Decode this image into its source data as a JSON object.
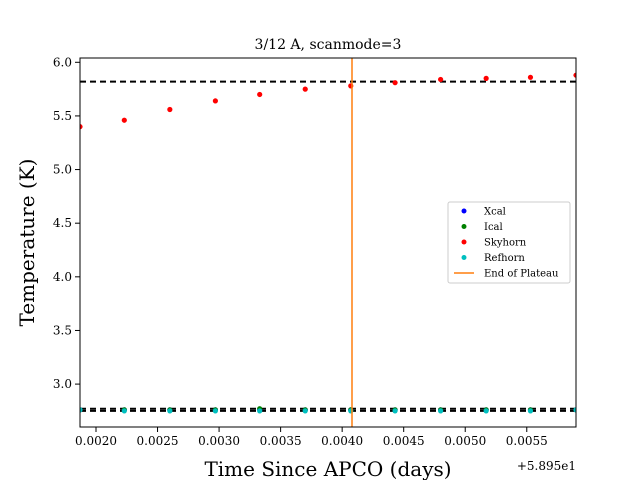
{
  "chart_data": {
    "type": "scatter",
    "title": "3/12 A, scanmode=3",
    "xlabel": "Time Since APCO (days)",
    "ylabel": "Temperature (K)",
    "x_offset_label": "+5.895e1",
    "xlim": [
      0.00187,
      0.0059
    ],
    "ylim": [
      2.6,
      6.04
    ],
    "xticks": [
      0.002,
      0.0025,
      0.003,
      0.0035,
      0.004,
      0.0045,
      0.005,
      0.0055
    ],
    "xtick_labels": [
      "0.0020",
      "0.0025",
      "0.0030",
      "0.0035",
      "0.0040",
      "0.0045",
      "0.0050",
      "0.0055"
    ],
    "yticks": [
      3.0,
      3.5,
      4.0,
      4.5,
      5.0,
      5.5,
      6.0
    ],
    "ytick_labels": [
      "3.0",
      "3.5",
      "4.0",
      "4.5",
      "5.0",
      "5.5",
      "6.0"
    ],
    "grid": false,
    "legend_position": "center-right",
    "series": [
      {
        "name": "Xcal",
        "color": "#0000ff",
        "x": [
          0.00187,
          0.00223,
          0.0026,
          0.00297,
          0.00333,
          0.0037,
          0.00407,
          0.00443,
          0.0048,
          0.00517,
          0.00553,
          0.0059
        ],
        "y": [
          2.76,
          2.76,
          2.76,
          2.76,
          2.76,
          2.76,
          2.76,
          2.76,
          2.76,
          2.76,
          2.76,
          2.76
        ]
      },
      {
        "name": "Ical",
        "color": "#008000",
        "x": [
          0.00187,
          0.00223,
          0.0026,
          0.00297,
          0.00333,
          0.0037,
          0.00407,
          0.00443,
          0.0048,
          0.00517,
          0.00553,
          0.0059
        ],
        "y": [
          2.76,
          2.76,
          2.76,
          2.76,
          2.77,
          2.76,
          2.76,
          2.76,
          2.76,
          2.76,
          2.76,
          2.76
        ]
      },
      {
        "name": "Skyhorn",
        "color": "#ff0000",
        "x": [
          0.00187,
          0.00223,
          0.0026,
          0.00297,
          0.00333,
          0.0037,
          0.00407,
          0.00443,
          0.0048,
          0.00517,
          0.00553,
          0.0059
        ],
        "y": [
          5.4,
          5.46,
          5.56,
          5.64,
          5.7,
          5.75,
          5.78,
          5.81,
          5.84,
          5.85,
          5.86,
          5.88
        ]
      },
      {
        "name": "Refhorn",
        "color": "#00bfbf",
        "x": [
          0.00187,
          0.00223,
          0.0026,
          0.00297,
          0.00333,
          0.0037,
          0.00407,
          0.00443,
          0.0048,
          0.00517,
          0.00553,
          0.0059
        ],
        "y": [
          2.76,
          2.75,
          2.75,
          2.75,
          2.75,
          2.75,
          2.75,
          2.75,
          2.75,
          2.75,
          2.75,
          2.76
        ]
      }
    ],
    "vertical_lines": [
      {
        "name": "End of Plateau",
        "x": 0.00408,
        "color": "#ff7f0e"
      }
    ],
    "horizontal_reference_lines": [
      {
        "y": 5.82,
        "color": "#000000",
        "style": "dashed"
      },
      {
        "y": 2.77,
        "color": "#000000",
        "style": "dashed"
      },
      {
        "y": 2.75,
        "color": "#000000",
        "style": "dashed"
      }
    ]
  }
}
